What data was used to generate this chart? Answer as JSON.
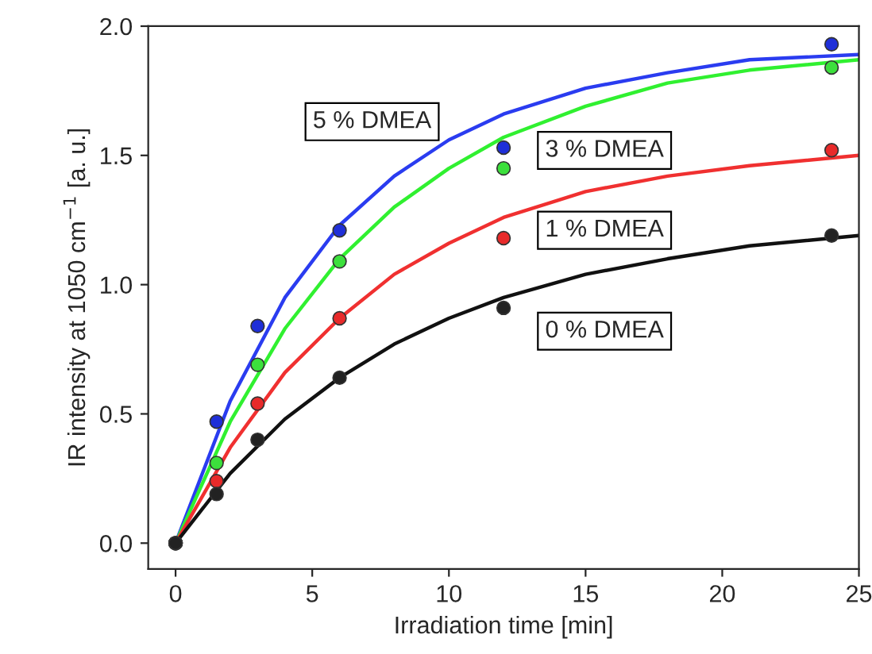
{
  "chart_data": {
    "type": "scatter",
    "xlabel": "Irradiation time [min]",
    "ylabel": "IR intensity at 1050 cm$^{−1}$ [a. u.]",
    "xlim": [
      -1,
      25
    ],
    "ylim": [
      -0.1,
      2.0
    ],
    "xticks": [
      0,
      5,
      10,
      15,
      20,
      25
    ],
    "yticks": [
      {
        "value": 0,
        "label": "0.0"
      },
      {
        "value": 0.5,
        "label": "0.5"
      },
      {
        "value": 1,
        "label": "1.0"
      },
      {
        "value": 1.5,
        "label": "1.5"
      },
      {
        "value": 2,
        "label": "2.0"
      }
    ],
    "x": [
      0,
      1.5,
      3,
      6,
      12,
      24
    ],
    "grid": false,
    "series": [
      {
        "marker": "circle",
        "color": "#1f2fd8",
        "values": [
          0,
          0.47,
          0.84,
          1.21,
          1.53,
          1.93
        ]
      },
      {
        "marker": "circle",
        "color": "#3ce03c",
        "values": [
          0,
          0.31,
          0.69,
          1.09,
          1.45,
          1.84
        ]
      },
      {
        "marker": "circle",
        "color": "#e82a2a",
        "values": [
          0,
          0.24,
          0.54,
          0.87,
          1.18,
          1.52
        ]
      },
      {
        "marker": "circle",
        "color": "#222222",
        "values": [
          0,
          0.19,
          0.4,
          0.64,
          0.91,
          1.19
        ]
      },
      {
        "type": "line",
        "color": "#2a3cf0",
        "x": [
          0,
          2,
          4,
          6,
          8,
          10,
          12,
          15,
          18,
          21,
          25
        ],
        "values": [
          0,
          0.55,
          0.95,
          1.23,
          1.42,
          1.56,
          1.66,
          1.76,
          1.82,
          1.87,
          1.89
        ]
      },
      {
        "type": "line",
        "color": "#30f030",
        "x": [
          0,
          2,
          4,
          6,
          8,
          10,
          12,
          15,
          18,
          21,
          25
        ],
        "values": [
          0,
          0.47,
          0.83,
          1.1,
          1.3,
          1.45,
          1.57,
          1.69,
          1.78,
          1.83,
          1.87
        ]
      },
      {
        "type": "line",
        "color": "#f03030",
        "x": [
          0,
          2,
          4,
          6,
          8,
          10,
          12,
          15,
          18,
          21,
          25
        ],
        "values": [
          0,
          0.37,
          0.66,
          0.87,
          1.04,
          1.16,
          1.26,
          1.36,
          1.42,
          1.46,
          1.5
        ]
      },
      {
        "type": "line",
        "color": "#111111",
        "x": [
          0,
          2,
          4,
          6,
          8,
          10,
          12,
          15,
          18,
          21,
          25
        ],
        "values": [
          0,
          0.27,
          0.48,
          0.64,
          0.77,
          0.87,
          0.95,
          1.04,
          1.1,
          1.15,
          1.19
        ]
      }
    ],
    "annotations": [
      "5 % DMEA",
      "3 % DMEA",
      "1 % DMEA",
      "0 % DMEA"
    ]
  }
}
